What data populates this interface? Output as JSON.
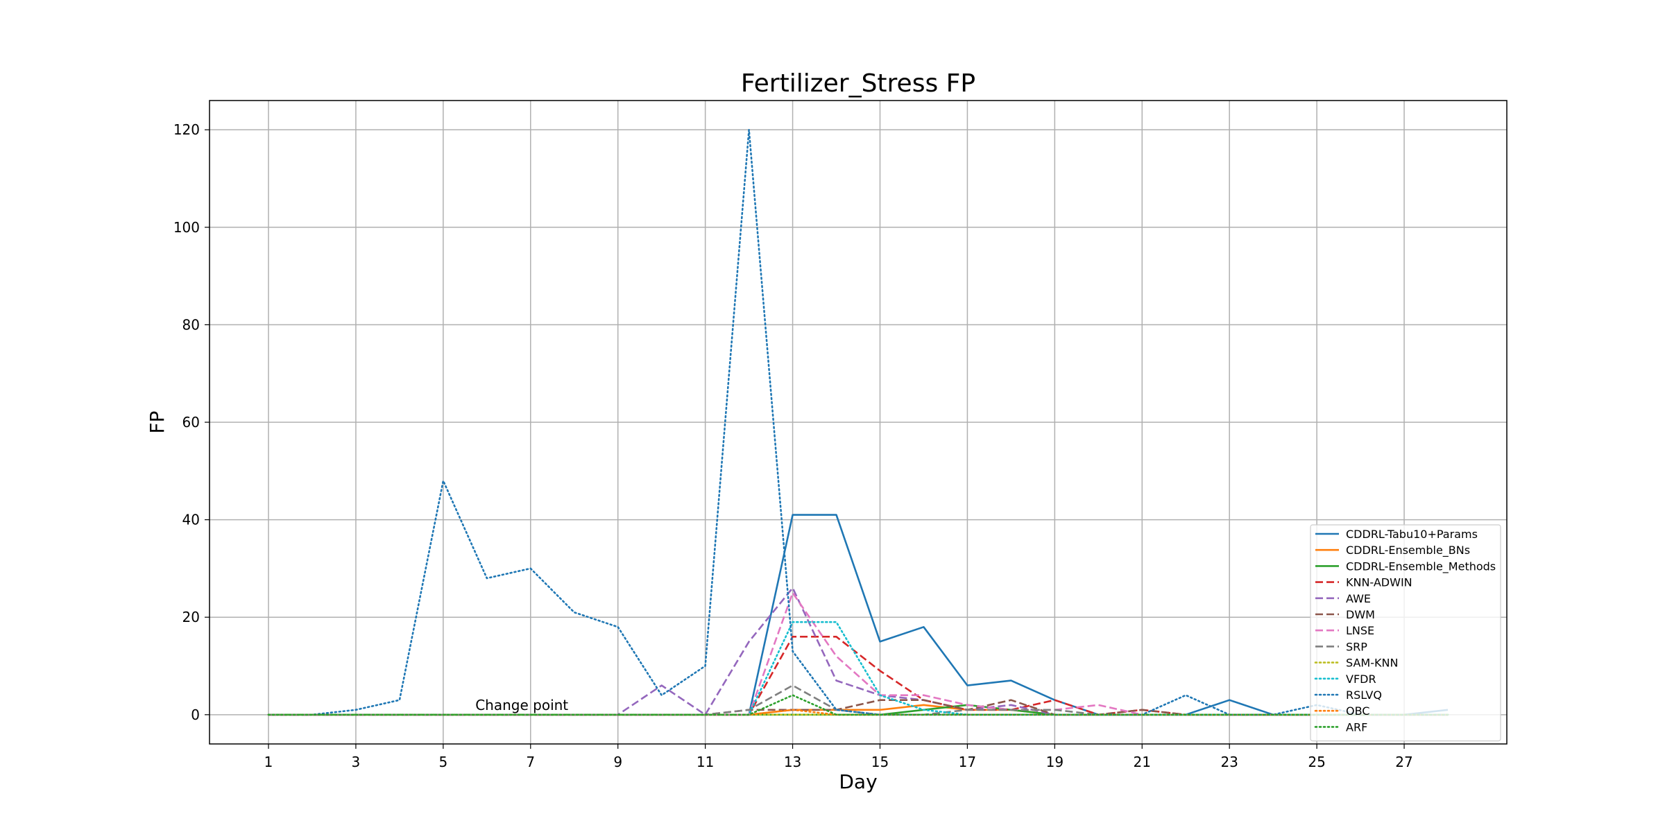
{
  "chart_data": {
    "type": "line",
    "title": "Fertilizer_Stress FP",
    "xlabel": "Day",
    "ylabel": "FP",
    "xlim": [
      -0.35,
      29.35
    ],
    "ylim": [
      -6,
      126
    ],
    "xticks": [
      1,
      3,
      5,
      7,
      9,
      11,
      13,
      15,
      17,
      19,
      21,
      23,
      25,
      27
    ],
    "yticks": [
      0,
      20,
      40,
      60,
      80,
      100,
      120
    ],
    "grid": true,
    "legend_position": "lower-right",
    "annotations": [
      {
        "text": "Change point",
        "x": 6.8,
        "y": 1
      }
    ],
    "x": [
      1,
      2,
      3,
      4,
      5,
      6,
      7,
      8,
      9,
      10,
      11,
      12,
      13,
      14,
      15,
      16,
      17,
      18,
      19,
      20,
      21,
      22,
      23,
      24,
      25,
      26,
      27,
      28
    ],
    "series": [
      {
        "name": "CDDRL-Tabu10+Params",
        "color": "#1f77b4",
        "style": "solid",
        "values": [
          0,
          0,
          0,
          0,
          0,
          0,
          0,
          0,
          0,
          0,
          0,
          0,
          41,
          41,
          15,
          18,
          6,
          7,
          3,
          0,
          0,
          0,
          3,
          0,
          0,
          0,
          0,
          1
        ]
      },
      {
        "name": "CDDRL-Ensemble_BNs",
        "color": "#ff7f0e",
        "style": "solid",
        "values": [
          0,
          0,
          0,
          0,
          0,
          0,
          0,
          0,
          0,
          0,
          0,
          0,
          1,
          1,
          1,
          2,
          1,
          1,
          0,
          0,
          0,
          0,
          0,
          0,
          0,
          0,
          0,
          0
        ]
      },
      {
        "name": "CDDRL-Ensemble_Methods",
        "color": "#2ca02c",
        "style": "solid",
        "values": [
          0,
          0,
          0,
          0,
          0,
          0,
          0,
          0,
          0,
          0,
          0,
          0,
          0,
          0,
          0,
          1,
          2,
          1,
          0,
          0,
          0,
          0,
          0,
          0,
          0,
          0,
          0,
          0
        ]
      },
      {
        "name": "KNN-ADWIN",
        "color": "#d62728",
        "style": "dashed",
        "values": [
          0,
          0,
          0,
          0,
          0,
          0,
          0,
          0,
          0,
          0,
          0,
          0,
          16,
          16,
          9,
          3,
          1,
          1,
          3,
          0,
          1,
          0,
          0,
          0,
          0,
          0,
          0,
          0
        ]
      },
      {
        "name": "AWE",
        "color": "#9467bd",
        "style": "dashed",
        "values": [
          0,
          0,
          0,
          0,
          0,
          0,
          0,
          0,
          0,
          6,
          0,
          15,
          26,
          7,
          4,
          3,
          1,
          2,
          0,
          0,
          0,
          0,
          0,
          0,
          0,
          0,
          0,
          0
        ]
      },
      {
        "name": "DWM",
        "color": "#8c564b",
        "style": "dashed",
        "values": [
          0,
          0,
          0,
          0,
          0,
          0,
          0,
          0,
          0,
          0,
          0,
          1,
          1,
          1,
          3,
          3,
          1,
          3,
          0,
          0,
          1,
          0,
          0,
          0,
          0,
          0,
          0,
          0
        ]
      },
      {
        "name": "LNSE",
        "color": "#e377c2",
        "style": "dashed",
        "values": [
          0,
          0,
          0,
          0,
          0,
          0,
          0,
          0,
          0,
          0,
          0,
          0,
          25,
          12,
          4,
          4,
          2,
          1,
          1,
          2,
          0,
          0,
          0,
          0,
          0,
          0,
          0,
          0
        ]
      },
      {
        "name": "SRP",
        "color": "#7f7f7f",
        "style": "dashed",
        "values": [
          0,
          0,
          0,
          0,
          0,
          0,
          0,
          0,
          0,
          0,
          0,
          1,
          6,
          1,
          0,
          0,
          1,
          1,
          1,
          0,
          0,
          0,
          0,
          0,
          0,
          0,
          0,
          0
        ]
      },
      {
        "name": "SAM-KNN",
        "color": "#bcbd22",
        "style": "dotted",
        "values": [
          0,
          0,
          0,
          0,
          0,
          0,
          0,
          0,
          0,
          0,
          0,
          0,
          0,
          0,
          0,
          0,
          0,
          0,
          0,
          0,
          0,
          0,
          0,
          0,
          0,
          0,
          0,
          0
        ]
      },
      {
        "name": "VFDR",
        "color": "#17becf",
        "style": "dotted",
        "values": [
          0,
          0,
          0,
          0,
          0,
          0,
          0,
          0,
          0,
          0,
          0,
          0,
          19,
          19,
          4,
          1,
          0,
          0,
          0,
          0,
          0,
          0,
          0,
          0,
          0,
          0,
          0,
          0
        ]
      },
      {
        "name": "RSLVQ",
        "color": "#1f77b4",
        "style": "dotted",
        "values": [
          0,
          0,
          1,
          3,
          48,
          28,
          30,
          21,
          18,
          4,
          10,
          120,
          13,
          1,
          0,
          0,
          0,
          0,
          0,
          0,
          0,
          4,
          0,
          0,
          2,
          0,
          0,
          0
        ]
      },
      {
        "name": "OBC",
        "color": "#ff7f0e",
        "style": "dotted",
        "values": [
          0,
          0,
          0,
          0,
          0,
          0,
          0,
          0,
          0,
          0,
          0,
          0,
          1,
          0,
          0,
          0,
          0,
          0,
          0,
          0,
          0,
          0,
          0,
          0,
          0,
          0,
          0,
          0
        ]
      },
      {
        "name": "ARF",
        "color": "#2ca02c",
        "style": "dotted",
        "values": [
          0,
          0,
          0,
          0,
          0,
          0,
          0,
          0,
          0,
          0,
          0,
          0,
          4,
          0,
          0,
          0,
          0,
          0,
          0,
          0,
          0,
          0,
          0,
          0,
          0,
          0,
          0,
          0
        ]
      }
    ]
  }
}
